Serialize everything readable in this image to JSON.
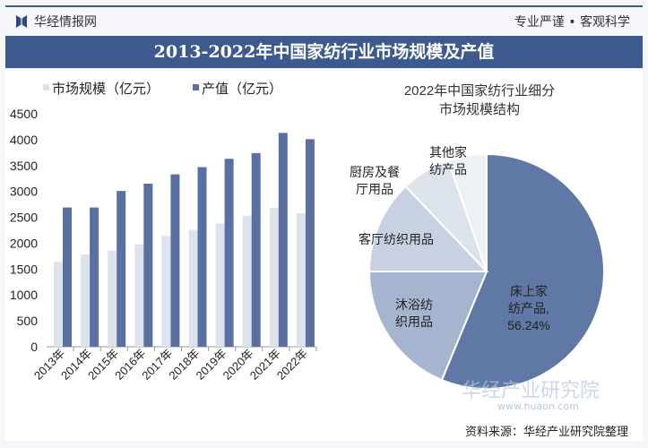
{
  "header": {
    "brand": "华经情报网",
    "slogan": "专业严谨 • 客观科学",
    "title": "2013-2022年中国家纺行业市场规模及产值"
  },
  "footer": {
    "source": "资料来源：华经产业研究院整理",
    "watermark": "华经产业研究院",
    "watermark_url": "www.huaon.com"
  },
  "colors": {
    "band": "#3d5a8f",
    "market": "#dde3ed",
    "output": "#5a70a0",
    "pie": [
      "#5f78a6",
      "#a5b4cf",
      "#c8d1e2",
      "#dde3ed",
      "#edf0f5"
    ]
  },
  "chart_data": [
    {
      "type": "bar",
      "title": "",
      "xlabel": "",
      "ylabel": "",
      "ylim": [
        0,
        4500
      ],
      "yticks": [
        0,
        500,
        1000,
        1500,
        2000,
        2500,
        3000,
        3500,
        4000,
        4500
      ],
      "categories": [
        "2013年",
        "2014年",
        "2015年",
        "2016年",
        "2017年",
        "2018年",
        "2019年",
        "2020年",
        "2021年",
        "2022年"
      ],
      "legend_position": "top",
      "series": [
        {
          "name": "市场规模（亿元）",
          "values": [
            1640,
            1780,
            1860,
            1980,
            2140,
            2260,
            2380,
            2530,
            2680,
            2580
          ]
        },
        {
          "name": "产值（亿元）",
          "values": [
            2690,
            2690,
            3010,
            3150,
            3330,
            3470,
            3630,
            3740,
            4130,
            4010
          ]
        }
      ]
    },
    {
      "type": "pie",
      "title": "2022年中国家纺行业细分市场规模结构",
      "slices": [
        {
          "label": "床上家纺产品,",
          "value": 56.24,
          "value_label": "56.24%"
        },
        {
          "label": "沐浴纺织用品",
          "value": 18.76
        },
        {
          "label": "客厅纺织用品",
          "value": 12.9
        },
        {
          "label": "厨房及餐厅用品",
          "value": 6.8
        },
        {
          "label": "其他家纺产品",
          "value": 5.3
        }
      ]
    }
  ]
}
